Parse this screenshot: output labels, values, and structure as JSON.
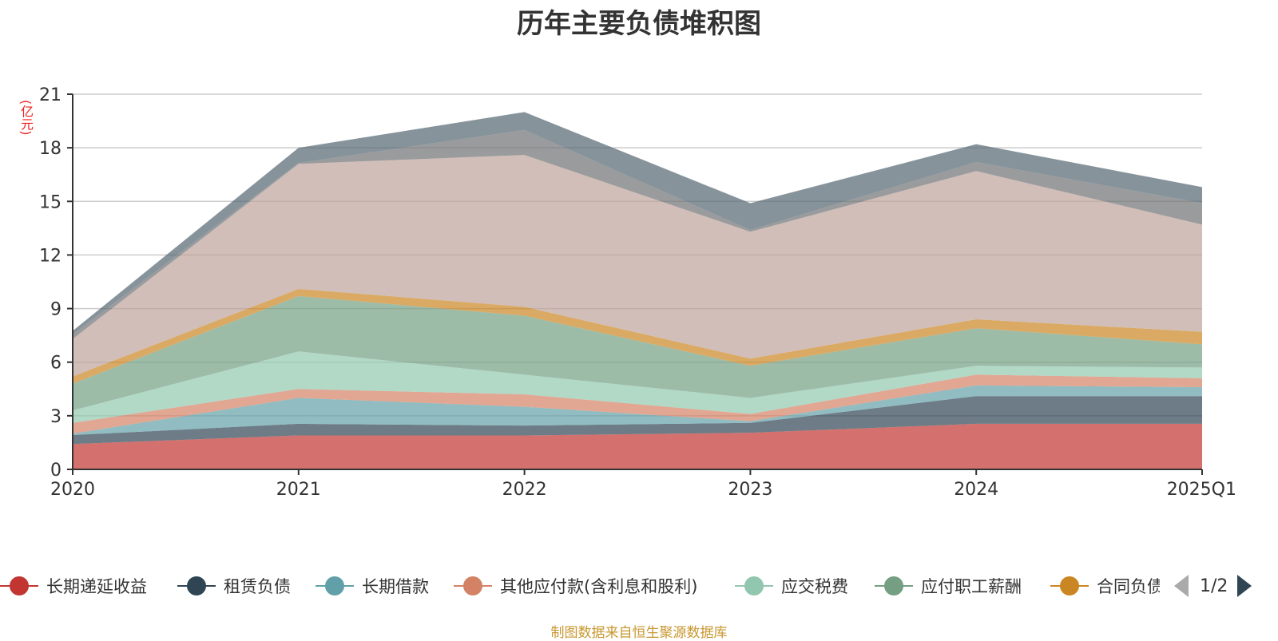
{
  "chart_data": {
    "type": "area",
    "stacked": true,
    "title": "历年主要负债堆积图",
    "ylabel": "(亿元)",
    "xlabel": "",
    "categories": [
      "2020",
      "2021",
      "2022",
      "2023",
      "2024",
      "2025Q1"
    ],
    "ylim": [
      0,
      21
    ],
    "yticks": [
      0,
      3,
      6,
      9,
      12,
      15,
      18,
      21
    ],
    "grid": true,
    "legend_position": "bottom",
    "series": [
      {
        "name": "长期递延收益",
        "color": "#c23531",
        "values": [
          1.42,
          1.9,
          1.9,
          2.05,
          2.55,
          2.55
        ]
      },
      {
        "name": "租赁负债",
        "color": "#2f4554",
        "values": [
          0.5,
          0.65,
          0.55,
          0.55,
          1.55,
          1.55
        ]
      },
      {
        "name": "长期借款",
        "color": "#61a0a8",
        "values": [
          0.08,
          1.45,
          1.05,
          0.1,
          0.6,
          0.5
        ]
      },
      {
        "name": "其他应付款(含利息和股利)",
        "color": "#d48265",
        "values": [
          0.6,
          0.5,
          0.7,
          0.4,
          0.6,
          0.5
        ]
      },
      {
        "name": "应交税费",
        "color": "#91c7ae",
        "values": [
          0.7,
          2.1,
          1.1,
          0.9,
          0.5,
          0.6
        ]
      },
      {
        "name": "应付职工薪酬",
        "color": "#749f83",
        "values": [
          1.5,
          3.1,
          3.3,
          1.8,
          2.1,
          1.3
        ]
      },
      {
        "name": "合同负债",
        "color": "#ca8622",
        "values": [
          0.4,
          0.4,
          0.5,
          0.4,
          0.5,
          0.7
        ]
      },
      {
        "name": "",
        "color": "#bda29a",
        "values": [
          2.1,
          7.0,
          8.5,
          7.1,
          8.3,
          6.0
        ]
      },
      {
        "name": "",
        "color": "#6e7074",
        "values": [
          0.25,
          0.05,
          1.4,
          0.1,
          0.5,
          1.2
        ]
      },
      {
        "name": "",
        "color": "#546570",
        "values": [
          0.2,
          0.85,
          1.0,
          1.5,
          1.0,
          0.9
        ]
      }
    ]
  },
  "legend": {
    "items": [
      {
        "label": "长期递延收益",
        "color": "#c23531"
      },
      {
        "label": "租赁负债",
        "color": "#2f4554"
      },
      {
        "label": "长期借款",
        "color": "#61a0a8"
      },
      {
        "label": "其他应付款(含利息和股利)",
        "color": "#d48265"
      },
      {
        "label": "应交税费",
        "color": "#91c7ae"
      },
      {
        "label": "应付职工薪酬",
        "color": "#749f83"
      },
      {
        "label": "合同负债",
        "color": "#ca8622"
      }
    ],
    "page": "1/2"
  },
  "footer": "制图数据来自恒生聚源数据库"
}
